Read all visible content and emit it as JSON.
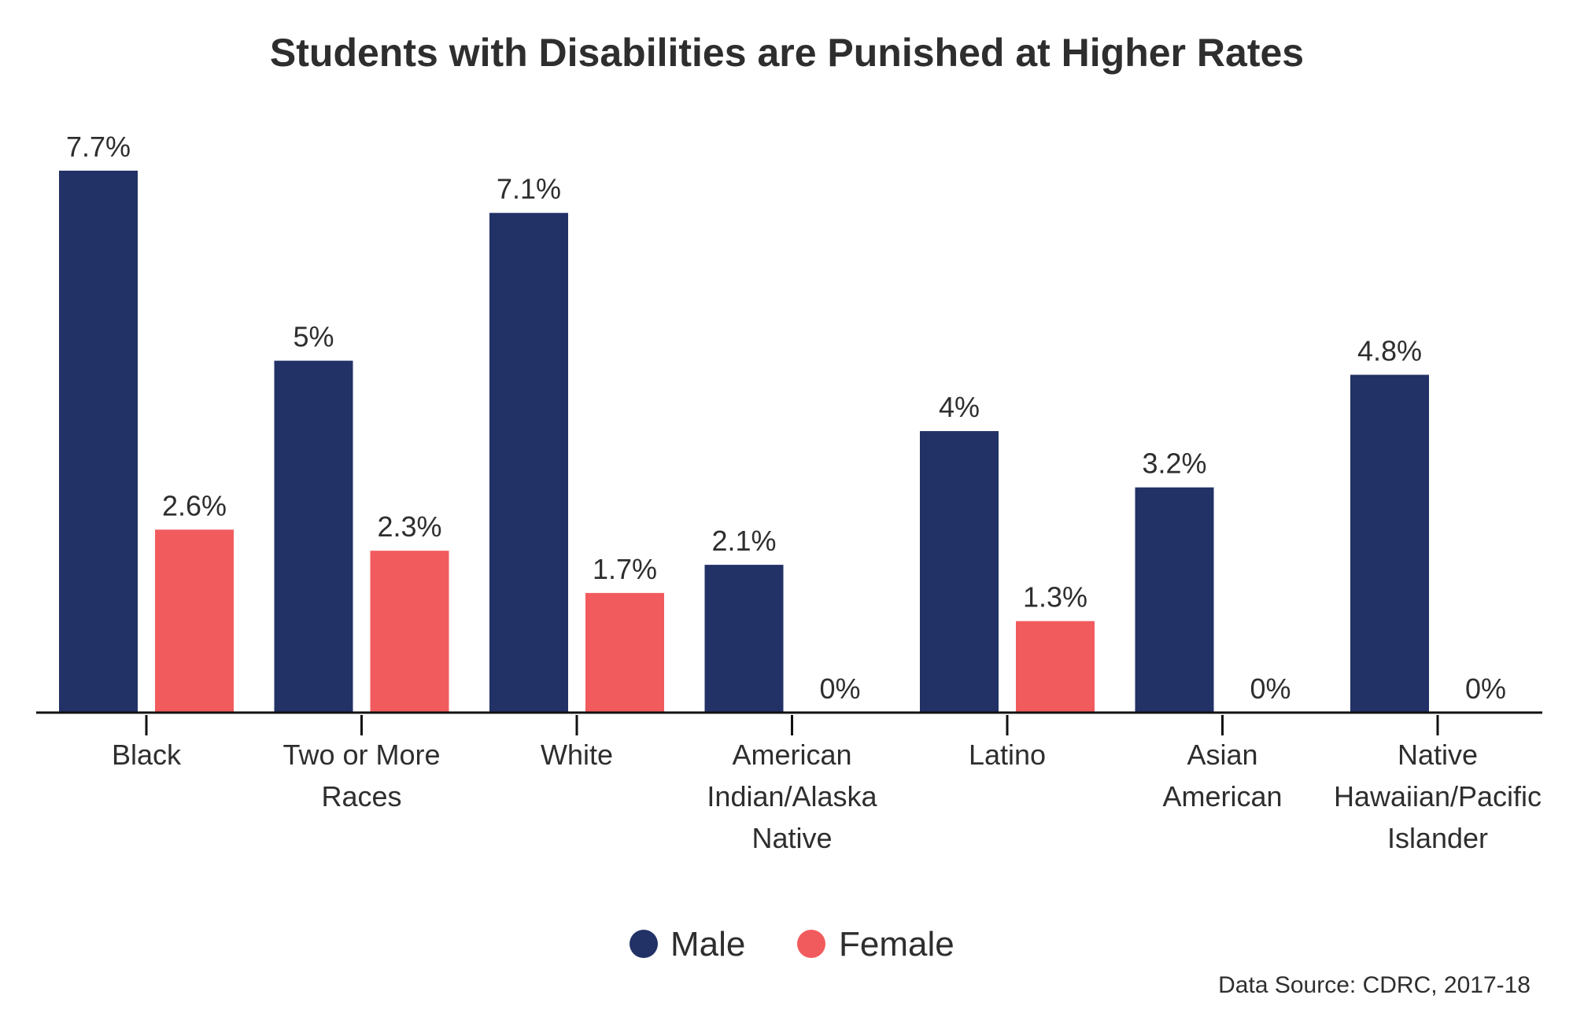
{
  "chart_data": {
    "type": "bar",
    "title": "Students with Disabilities are Punished at Higher Rates",
    "categories": [
      [
        "Black"
      ],
      [
        "Two or More",
        "Races"
      ],
      [
        "White"
      ],
      [
        "American",
        "Indian/Alaska",
        "Native"
      ],
      [
        "Latino"
      ],
      [
        "Asian",
        "American"
      ],
      [
        "Native",
        "Hawaiian/Pacific",
        "Islander"
      ]
    ],
    "series": [
      {
        "name": "Male",
        "color": "#223166",
        "values": [
          7.7,
          5,
          7.1,
          2.1,
          4,
          3.2,
          4.8
        ],
        "labels": [
          "7.7%",
          "5%",
          "7.1%",
          "2.1%",
          "4%",
          "3.2%",
          "4.8%"
        ]
      },
      {
        "name": "Female",
        "color": "#f25b5d",
        "values": [
          2.6,
          2.3,
          1.7,
          0,
          1.3,
          0,
          0
        ],
        "labels": [
          "2.6%",
          "2.3%",
          "1.7%",
          "0%",
          "1.3%",
          "0%",
          "0%"
        ]
      }
    ],
    "ylim": [
      0,
      7.7
    ],
    "grid": false,
    "legend_position": "bottom",
    "source": "Data Source: CDRC, 2017-18",
    "axis_color": "#111111"
  }
}
